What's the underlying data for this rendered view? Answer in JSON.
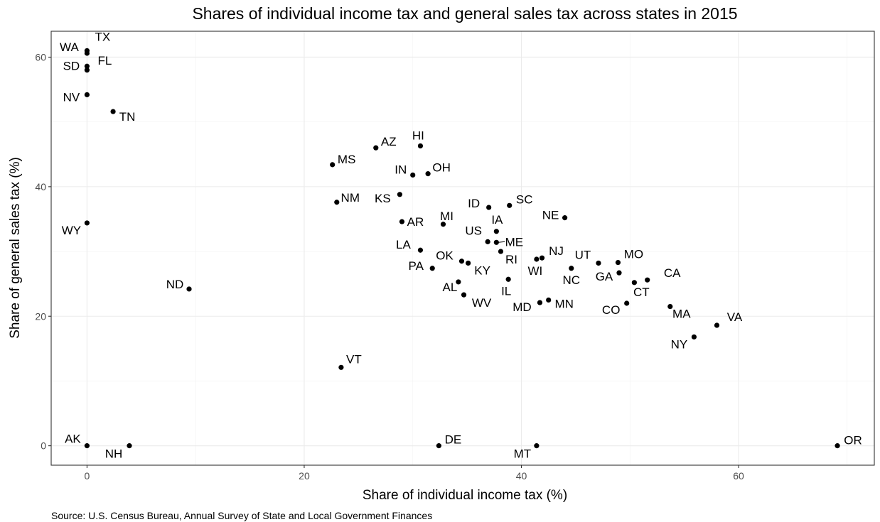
{
  "chart_data": {
    "type": "scatter",
    "title": "Shares of individual income tax and general sales tax across states in 2015",
    "xlabel": "Share of individual income tax (%)",
    "ylabel": "Share of general sales tax (%)",
    "caption": "Source: U.S. Census Bureau, Annual Survey of State and Local Government Finances",
    "xlim": [
      -3.3,
      72.5
    ],
    "ylim": [
      -3,
      64
    ],
    "x_ticks": [
      0,
      20,
      40,
      60
    ],
    "y_ticks": [
      0,
      20,
      40,
      60
    ],
    "grid": true,
    "points": [
      {
        "label": "TX",
        "x": 0,
        "y": 61.0
      },
      {
        "label": "WA",
        "x": 0,
        "y": 60.6
      },
      {
        "label": "FL",
        "x": 0,
        "y": 58.6
      },
      {
        "label": "SD",
        "x": 0,
        "y": 58.0
      },
      {
        "label": "NV",
        "x": 0,
        "y": 54.2
      },
      {
        "label": "TN",
        "x": 2.4,
        "y": 51.6
      },
      {
        "label": "AZ",
        "x": 26.6,
        "y": 46.0
      },
      {
        "label": "HI",
        "x": 30.7,
        "y": 46.3
      },
      {
        "label": "MS",
        "x": 22.6,
        "y": 43.4
      },
      {
        "label": "OH",
        "x": 31.4,
        "y": 42.0
      },
      {
        "label": "IN",
        "x": 30.0,
        "y": 41.8
      },
      {
        "label": "NM",
        "x": 23.0,
        "y": 37.6
      },
      {
        "label": "KS",
        "x": 28.8,
        "y": 38.8
      },
      {
        "label": "ID",
        "x": 37.0,
        "y": 36.8
      },
      {
        "label": "SC",
        "x": 38.9,
        "y": 37.1
      },
      {
        "label": "NE",
        "x": 44.0,
        "y": 35.2
      },
      {
        "label": "WY",
        "x": 0,
        "y": 34.4
      },
      {
        "label": "AR",
        "x": 29.0,
        "y": 34.6
      },
      {
        "label": "MI",
        "x": 32.8,
        "y": 34.2
      },
      {
        "label": "IA",
        "x": 37.7,
        "y": 33.1
      },
      {
        "label": "US",
        "x": 36.9,
        "y": 31.5
      },
      {
        "label": "ME",
        "x": 37.7,
        "y": 31.4
      },
      {
        "label": "LA",
        "x": 30.7,
        "y": 30.2
      },
      {
        "label": "RI",
        "x": 38.1,
        "y": 30.0
      },
      {
        "label": "NJ",
        "x": 41.9,
        "y": 29.0
      },
      {
        "label": "WI",
        "x": 41.4,
        "y": 28.8
      },
      {
        "label": "OK",
        "x": 34.5,
        "y": 28.5
      },
      {
        "label": "KY",
        "x": 35.1,
        "y": 28.2
      },
      {
        "label": "UT",
        "x": 47.1,
        "y": 28.2
      },
      {
        "label": "MO",
        "x": 48.9,
        "y": 28.3
      },
      {
        "label": "PA",
        "x": 31.8,
        "y": 27.4
      },
      {
        "label": "NC",
        "x": 44.6,
        "y": 27.4
      },
      {
        "label": "GA",
        "x": 49.0,
        "y": 26.7
      },
      {
        "label": "IL",
        "x": 38.8,
        "y": 25.7
      },
      {
        "label": "AL",
        "x": 34.2,
        "y": 25.3
      },
      {
        "label": "CA",
        "x": 51.6,
        "y": 25.6
      },
      {
        "label": "CT",
        "x": 50.4,
        "y": 25.2
      },
      {
        "label": "ND",
        "x": 9.4,
        "y": 24.2
      },
      {
        "label": "WV",
        "x": 34.7,
        "y": 23.3
      },
      {
        "label": "MN",
        "x": 42.5,
        "y": 22.5
      },
      {
        "label": "MD",
        "x": 41.7,
        "y": 22.1
      },
      {
        "label": "CO",
        "x": 49.7,
        "y": 22.0
      },
      {
        "label": "MA",
        "x": 53.7,
        "y": 21.5
      },
      {
        "label": "VA",
        "x": 58.0,
        "y": 18.6
      },
      {
        "label": "NY",
        "x": 55.9,
        "y": 16.8
      },
      {
        "label": "VT",
        "x": 23.4,
        "y": 12.1
      },
      {
        "label": "AK",
        "x": 0,
        "y": 0
      },
      {
        "label": "NH",
        "x": 3.9,
        "y": 0
      },
      {
        "label": "DE",
        "x": 32.4,
        "y": 0
      },
      {
        "label": "MT",
        "x": 41.4,
        "y": 0
      },
      {
        "label": "OR",
        "x": 69.1,
        "y": 0
      }
    ]
  }
}
